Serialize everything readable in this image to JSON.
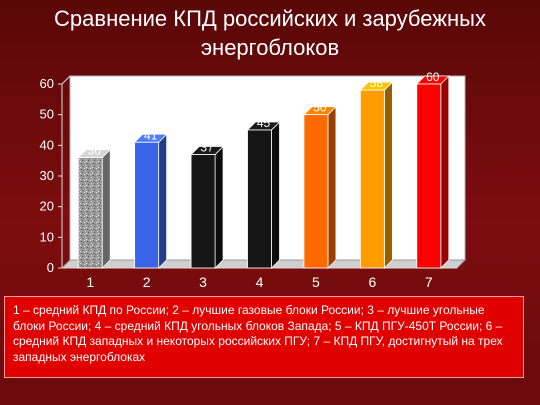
{
  "title_lines": [
    "Сравнение КПД российских и зарубежных",
    "энергоблоков"
  ],
  "chart_data": {
    "type": "bar",
    "categories": [
      "1",
      "2",
      "3",
      "4",
      "5",
      "6",
      "7"
    ],
    "values": [
      36,
      41,
      37,
      45,
      50,
      58,
      60
    ],
    "ylim": [
      0,
      60
    ],
    "yticks": [
      0,
      10,
      20,
      30,
      40,
      50,
      60
    ],
    "grid": "none",
    "colors": [
      "#aaaaaa",
      "#3a64e8",
      "#151515",
      "#151515",
      "#ff6a00",
      "#ff9d00",
      "#ff0000"
    ],
    "pattern_first_bar": "speckled-gray"
  },
  "legend_text": "1 – средний КПД по России; 2 – лучшие газовые блоки России; 3 – лучшие угольные блоки России; 4 – средний КПД угольных блоков Запада; 5 – КПД ПГУ-450Т  России;  6 – средний КПД западных и некоторых российских ПГУ; 7 – КПД ПГУ, достигнутый на трех западных энергоблоках"
}
